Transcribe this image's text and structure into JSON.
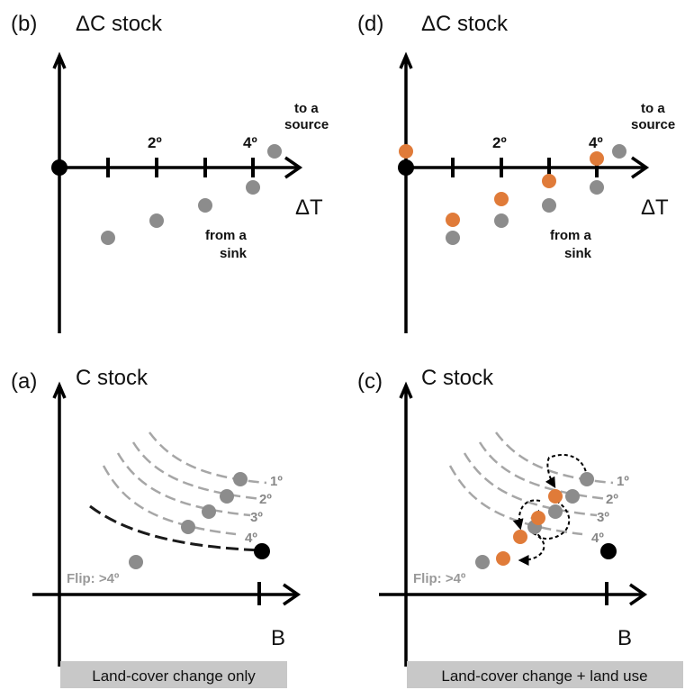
{
  "colors": {
    "axis": "#000000",
    "gray_point": "#8c8c8c",
    "orange_point": "#e07b39",
    "isoline": "#a6a6a6",
    "black_curve": "#1a1a1a",
    "caption_bg": "#c8c8c8"
  },
  "panels": {
    "b": {
      "letter": "(b)",
      "y_title": "ΔC stock",
      "x_title": "ΔT",
      "tick_labels": [
        "2º",
        "4º"
      ],
      "note_source_line1": "to a",
      "note_source_line2": "source",
      "note_sink_line1": "from a",
      "note_sink_line2": "sink"
    },
    "d": {
      "letter": "(d)",
      "y_title": "ΔC stock",
      "x_title": "ΔT",
      "tick_labels": [
        "2º",
        "4º"
      ],
      "note_source_line1": "to a",
      "note_source_line2": "source",
      "note_sink_line1": "from a",
      "note_sink_line2": "sink"
    },
    "a": {
      "letter": "(a)",
      "y_title": "C stock",
      "x_title": "B",
      "iso_labels": [
        "1º",
        "2º",
        "3º",
        "4º"
      ],
      "flip_label": "Flip: >4º"
    },
    "c": {
      "letter": "(c)",
      "y_title": "C stock",
      "x_title": "B",
      "iso_labels": [
        "1º",
        "2º",
        "3º",
        "4º"
      ],
      "flip_label": "Flip: >4º"
    }
  },
  "captions": {
    "left": "Land-cover change only",
    "right": "Land-cover change + land use"
  }
}
